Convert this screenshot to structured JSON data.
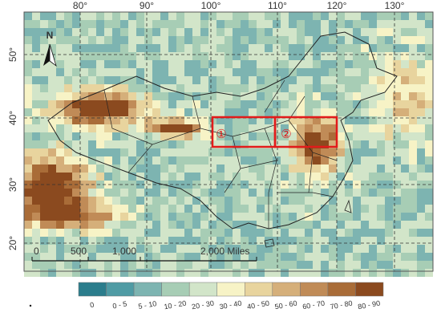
{
  "longitude_labels": [
    "80°",
    "90°",
    "100°",
    "110°",
    "120°",
    "130°"
  ],
  "latitude_labels": [
    "50°",
    "40°",
    "30°",
    "20°"
  ],
  "north_label": "N",
  "scale_bar": {
    "labels": [
      "0",
      "500",
      "1,000",
      "2,000 Miles"
    ]
  },
  "regions": [
    {
      "label": "①"
    },
    {
      "label": "②"
    }
  ],
  "legend": {
    "items": [
      {
        "label": "0",
        "color": "#2b7d8c"
      },
      {
        "label": "0 - 5",
        "color": "#4f9ba4"
      },
      {
        "label": "5 - 10",
        "color": "#7db4b1"
      },
      {
        "label": "10 - 20",
        "color": "#a7cdb5"
      },
      {
        "label": "20 - 30",
        "color": "#d2e5c9"
      },
      {
        "label": "30 - 40",
        "color": "#f7f3c6"
      },
      {
        "label": "40 - 50",
        "color": "#e8d49e"
      },
      {
        "label": "50 - 60",
        "color": "#d5af7a"
      },
      {
        "label": "60 - 70",
        "color": "#c08b57"
      },
      {
        "label": "70 - 80",
        "color": "#a96c38"
      },
      {
        "label": "80 - 90",
        "color": "#8b4a1f"
      }
    ]
  }
}
